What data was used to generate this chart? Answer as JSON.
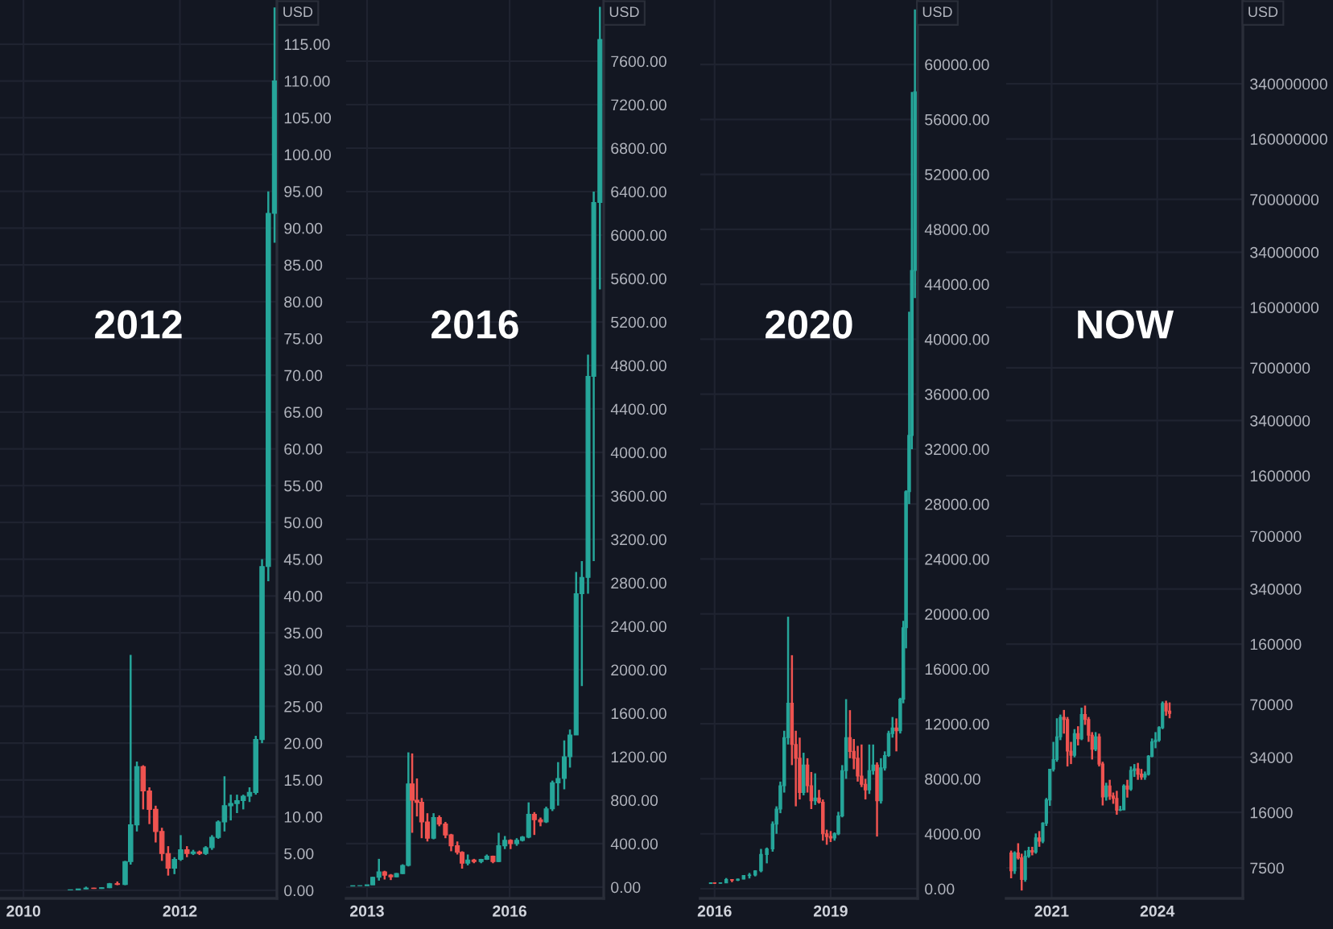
{
  "chart_data": [
    {
      "type": "candlestick",
      "ylabel": "USD",
      "annotations": [
        "2012"
      ],
      "grid": true,
      "xlim": [
        2009.7,
        2013.24
      ],
      "xticks": [
        2010,
        2012
      ],
      "ylim": [
        -1.1,
        121
      ],
      "yticks": [
        {
          "value": 0,
          "label": "0.00"
        },
        {
          "value": 5,
          "label": "5.00"
        },
        {
          "value": 10,
          "label": "10.00"
        },
        {
          "value": 15,
          "label": "15.00"
        },
        {
          "value": 20,
          "label": "20.00"
        },
        {
          "value": 25,
          "label": "25.00"
        },
        {
          "value": 30,
          "label": "30.00"
        },
        {
          "value": 35,
          "label": "35.00"
        },
        {
          "value": 40,
          "label": "40.00"
        },
        {
          "value": 45,
          "label": "45.00"
        },
        {
          "value": 50,
          "label": "50.00"
        },
        {
          "value": 55,
          "label": "55.00"
        },
        {
          "value": 60,
          "label": "60.00"
        },
        {
          "value": 65,
          "label": "65.00"
        },
        {
          "value": 70,
          "label": "70.00"
        },
        {
          "value": 75,
          "label": "75.00"
        },
        {
          "value": 80,
          "label": "80.00"
        },
        {
          "value": 85,
          "label": "85.00"
        },
        {
          "value": 90,
          "label": "90.00"
        },
        {
          "value": 95,
          "label": "95.00"
        },
        {
          "value": 100,
          "label": "100.00"
        },
        {
          "value": 105,
          "label": "105.00"
        },
        {
          "value": 110,
          "label": "110.00"
        },
        {
          "value": 115,
          "label": "115.00"
        }
      ],
      "x": [
        2010.6,
        2010.7,
        2010.8,
        2010.9,
        2011.0,
        2011.1,
        2011.2,
        2011.3,
        2011.37,
        2011.45,
        2011.53,
        2011.61,
        2011.69,
        2011.77,
        2011.85,
        2011.93,
        2012.01,
        2012.09,
        2012.17,
        2012.25,
        2012.33,
        2012.41,
        2012.49,
        2012.57,
        2012.65,
        2012.73,
        2012.81,
        2012.89,
        2012.97,
        2013.05,
        2013.13,
        2013.21
      ],
      "ohlc": [
        [
          0.06,
          0.1,
          0.05,
          0.07
        ],
        [
          0.07,
          0.2,
          0.06,
          0.19
        ],
        [
          0.19,
          0.5,
          0.15,
          0.3
        ],
        [
          0.3,
          0.35,
          0.2,
          0.25
        ],
        [
          0.25,
          0.4,
          0.2,
          0.35
        ],
        [
          0.35,
          1.0,
          0.3,
          0.9
        ],
        [
          0.9,
          1.2,
          0.7,
          0.8
        ],
        [
          0.8,
          4.0,
          0.7,
          3.9
        ],
        [
          3.9,
          32,
          3.5,
          8.9
        ],
        [
          8.9,
          17.5,
          8,
          16.8
        ],
        [
          16.8,
          17,
          11,
          13.5
        ],
        [
          13.5,
          14,
          9,
          11
        ],
        [
          11,
          11.5,
          6.5,
          8
        ],
        [
          8,
          8.5,
          4,
          5
        ],
        [
          5,
          6,
          2,
          3
        ],
        [
          3,
          4.5,
          2.2,
          4.2
        ],
        [
          4.2,
          7.5,
          4,
          5.5
        ],
        [
          5.5,
          6,
          4.5,
          5
        ],
        [
          5,
          5.5,
          4.8,
          5.2
        ],
        [
          5.2,
          5.4,
          4.8,
          5.0
        ],
        [
          5,
          6,
          4.8,
          5.8
        ],
        [
          5.8,
          7.5,
          5.5,
          7.2
        ],
        [
          7.2,
          9.5,
          7,
          9.3
        ],
        [
          9.3,
          15.5,
          8,
          11.5
        ],
        [
          11.5,
          13,
          9.5,
          11.8
        ],
        [
          11.8,
          13,
          10.5,
          12.2
        ],
        [
          12.2,
          13,
          11,
          12.8
        ],
        [
          12.8,
          14,
          12,
          13.3
        ],
        [
          13.3,
          21,
          13,
          20.5
        ],
        [
          20.5,
          45,
          20,
          44
        ],
        [
          44,
          95,
          42,
          92
        ],
        [
          92,
          120,
          88,
          110
        ]
      ]
    },
    {
      "type": "candlestick",
      "ylabel": "USD",
      "annotations": [
        "2016"
      ],
      "grid": true,
      "xlim": [
        2012.56,
        2017.98
      ],
      "xticks": [
        2013,
        2016
      ],
      "ylim": [
        -104,
        8163
      ],
      "yticks": [
        {
          "value": 0,
          "label": "0.00"
        },
        {
          "value": 400,
          "label": "400.00"
        },
        {
          "value": 800,
          "label": "800.00"
        },
        {
          "value": 1200,
          "label": "1200.00"
        },
        {
          "value": 1600,
          "label": "1600.00"
        },
        {
          "value": 2000,
          "label": "2000.00"
        },
        {
          "value": 2400,
          "label": "2400.00"
        },
        {
          "value": 2800,
          "label": "2800.00"
        },
        {
          "value": 3200,
          "label": "3200.00"
        },
        {
          "value": 3600,
          "label": "3600.00"
        },
        {
          "value": 4000,
          "label": "4000.00"
        },
        {
          "value": 4400,
          "label": "4400.00"
        },
        {
          "value": 4800,
          "label": "4800.00"
        },
        {
          "value": 5200,
          "label": "5200.00"
        },
        {
          "value": 5600,
          "label": "5600.00"
        },
        {
          "value": 6000,
          "label": "6000.00"
        },
        {
          "value": 6400,
          "label": "6400.00"
        },
        {
          "value": 6800,
          "label": "6800.00"
        },
        {
          "value": 7200,
          "label": "7200.00"
        },
        {
          "value": 7600,
          "label": "7600.00"
        }
      ],
      "x": [
        2012.7,
        2012.85,
        2013.0,
        2013.12,
        2013.25,
        2013.37,
        2013.5,
        2013.62,
        2013.75,
        2013.87,
        2013.95,
        2014.05,
        2014.15,
        2014.27,
        2014.4,
        2014.52,
        2014.65,
        2014.77,
        2014.9,
        2015.0,
        2015.12,
        2015.25,
        2015.4,
        2015.52,
        2015.65,
        2015.77,
        2015.9,
        2016.02,
        2016.15,
        2016.27,
        2016.4,
        2016.52,
        2016.65,
        2016.77,
        2016.9,
        2017.02,
        2017.15,
        2017.27,
        2017.4,
        2017.52,
        2017.65,
        2017.77,
        2017.9
      ],
      "ohlc": [
        [
          10,
          14,
          9,
          13
        ],
        [
          13,
          14,
          12,
          13.5
        ],
        [
          13.5,
          22,
          13,
          21
        ],
        [
          21,
          95,
          20,
          90
        ],
        [
          90,
          260,
          60,
          140
        ],
        [
          140,
          150,
          70,
          110
        ],
        [
          110,
          120,
          65,
          95
        ],
        [
          95,
          130,
          90,
          125
        ],
        [
          125,
          210,
          120,
          200
        ],
        [
          200,
          1240,
          190,
          950
        ],
        [
          950,
          1230,
          500,
          800
        ],
        [
          800,
          1000,
          650,
          780
        ],
        [
          780,
          820,
          450,
          600
        ],
        [
          600,
          680,
          420,
          450
        ],
        [
          450,
          680,
          440,
          640
        ],
        [
          640,
          660,
          560,
          580
        ],
        [
          580,
          600,
          450,
          480
        ],
        [
          480,
          490,
          330,
          380
        ],
        [
          380,
          420,
          300,
          320
        ],
        [
          320,
          330,
          170,
          220
        ],
        [
          220,
          300,
          200,
          250
        ],
        [
          250,
          260,
          220,
          235
        ],
        [
          235,
          260,
          220,
          255
        ],
        [
          255,
          300,
          250,
          285
        ],
        [
          285,
          290,
          220,
          235
        ],
        [
          235,
          500,
          230,
          380
        ],
        [
          380,
          470,
          350,
          430
        ],
        [
          430,
          440,
          350,
          400
        ],
        [
          400,
          450,
          380,
          430
        ],
        [
          430,
          470,
          420,
          460
        ],
        [
          460,
          780,
          450,
          670
        ],
        [
          670,
          690,
          480,
          620
        ],
        [
          620,
          640,
          560,
          600
        ],
        [
          600,
          740,
          590,
          720
        ],
        [
          720,
          980,
          700,
          960
        ],
        [
          960,
          1150,
          750,
          1000
        ],
        [
          1000,
          1350,
          900,
          1200
        ],
        [
          1200,
          1450,
          1100,
          1400
        ],
        [
          1400,
          2900,
          1400,
          2700
        ],
        [
          2700,
          3000,
          1850,
          2850
        ],
        [
          2850,
          4900,
          2700,
          4700
        ],
        [
          4700,
          6400,
          3000,
          6300
        ],
        [
          6300,
          8100,
          5500,
          7800
        ]
      ]
    },
    {
      "type": "candlestick",
      "ylabel": "USD",
      "annotations": [
        "2020"
      ],
      "grid": true,
      "xlim": [
        2015.63,
        2021.25
      ],
      "xticks": [
        2016,
        2019
      ],
      "ylim": [
        -703,
        64690
      ],
      "yticks": [
        {
          "value": 0,
          "label": "0.00"
        },
        {
          "value": 4000,
          "label": "4000.00"
        },
        {
          "value": 8000,
          "label": "8000.00"
        },
        {
          "value": 12000,
          "label": "12000.00"
        },
        {
          "value": 16000,
          "label": "16000.00"
        },
        {
          "value": 20000,
          "label": "20000.00"
        },
        {
          "value": 24000,
          "label": "24000.00"
        },
        {
          "value": 28000,
          "label": "28000.00"
        },
        {
          "value": 32000,
          "label": "32000.00"
        },
        {
          "value": 36000,
          "label": "36000.00"
        },
        {
          "value": 40000,
          "label": "40000.00"
        },
        {
          "value": 44000,
          "label": "44000.00"
        },
        {
          "value": 48000,
          "label": "48000.00"
        },
        {
          "value": 52000,
          "label": "52000.00"
        },
        {
          "value": 56000,
          "label": "56000.00"
        },
        {
          "value": 60000,
          "label": "60000.00"
        }
      ],
      "x": [
        2015.9,
        2016.0,
        2016.15,
        2016.3,
        2016.45,
        2016.6,
        2016.75,
        2016.9,
        2017.05,
        2017.2,
        2017.35,
        2017.5,
        2017.6,
        2017.7,
        2017.8,
        2017.9,
        2018.0,
        2018.1,
        2018.2,
        2018.3,
        2018.4,
        2018.5,
        2018.6,
        2018.7,
        2018.8,
        2018.9,
        2019.0,
        2019.1,
        2019.2,
        2019.3,
        2019.4,
        2019.5,
        2019.6,
        2019.7,
        2019.8,
        2019.9,
        2020.0,
        2020.1,
        2020.2,
        2020.3,
        2020.4,
        2020.5,
        2020.6,
        2020.7,
        2020.8,
        2020.88,
        2020.95,
        2021.03,
        2021.1,
        2021.18
      ],
      "ohlc": [
        [
          380,
          470,
          350,
          430
        ],
        [
          430,
          440,
          350,
          400
        ],
        [
          400,
          460,
          380,
          430
        ],
        [
          430,
          780,
          420,
          670
        ],
        [
          670,
          690,
          480,
          620
        ],
        [
          620,
          740,
          560,
          700
        ],
        [
          700,
          980,
          690,
          960
        ],
        [
          960,
          1150,
          750,
          1000
        ],
        [
          1000,
          1350,
          900,
          1300
        ],
        [
          1300,
          2900,
          1200,
          2500
        ],
        [
          2500,
          3000,
          1850,
          2900
        ],
        [
          2900,
          4900,
          2700,
          4700
        ],
        [
          4700,
          6000,
          4000,
          5800
        ],
        [
          5800,
          7800,
          5500,
          7500
        ],
        [
          7500,
          11500,
          7000,
          11000
        ],
        [
          11000,
          19800,
          10500,
          13500
        ],
        [
          13500,
          17000,
          9000,
          10500
        ],
        [
          10500,
          11500,
          6000,
          9500
        ],
        [
          9500,
          11000,
          6500,
          7000
        ],
        [
          7000,
          9900,
          6800,
          9000
        ],
        [
          9000,
          9500,
          7000,
          7500
        ],
        [
          7500,
          8500,
          5800,
          6400
        ],
        [
          6400,
          8400,
          6100,
          6600
        ],
        [
          6600,
          7200,
          6200,
          6300
        ],
        [
          6300,
          6500,
          3500,
          4000
        ],
        [
          4000,
          4300,
          3200,
          3800
        ],
        [
          3800,
          4200,
          3400,
          3700
        ],
        [
          3700,
          4100,
          3500,
          4000
        ],
        [
          4000,
          5600,
          3900,
          5300
        ],
        [
          5300,
          9000,
          5200,
          8600
        ],
        [
          8600,
          13800,
          8000,
          11000
        ],
        [
          11000,
          13000,
          9500,
          10000
        ],
        [
          10000,
          10900,
          8700,
          9500
        ],
        [
          9500,
          10400,
          7800,
          8200
        ],
        [
          8200,
          10500,
          7400,
          7600
        ],
        [
          7600,
          8000,
          6500,
          7200
        ],
        [
          7200,
          10500,
          6900,
          8600
        ],
        [
          8600,
          10500,
          8300,
          9000
        ],
        [
          9000,
          9200,
          3800,
          6400
        ],
        [
          6400,
          9500,
          6200,
          8800
        ],
        [
          8800,
          10000,
          8600,
          9700
        ],
        [
          9700,
          11500,
          9600,
          11300
        ],
        [
          11300,
          12500,
          11000,
          11700
        ],
        [
          11700,
          12400,
          10000,
          11500
        ],
        [
          11500,
          13900,
          11300,
          13800
        ],
        [
          13800,
          19500,
          13500,
          19000
        ],
        [
          19000,
          29000,
          17500,
          28900
        ],
        [
          28900,
          42000,
          28000,
          33000
        ],
        [
          33000,
          58000,
          32000,
          45000
        ],
        [
          45000,
          64000,
          43000,
          58000
        ]
      ]
    },
    {
      "type": "candlestick",
      "ylabel": "USD",
      "annotations": [
        "NOW"
      ],
      "grid": true,
      "log": true,
      "xlim": [
        2019.71,
        2026.43
      ],
      "xticks": [
        2021,
        2024
      ],
      "ylim": [
        4937,
        1070000000
      ],
      "yticks": [
        7500,
        16000,
        34000,
        70000,
        160000,
        340000,
        700000,
        1600000,
        3400000,
        7000000,
        16000000,
        34000000,
        70000000,
        160000000,
        340000000
      ],
      "x": [
        2019.85,
        2019.95,
        2020.05,
        2020.15,
        2020.25,
        2020.35,
        2020.45,
        2020.55,
        2020.65,
        2020.75,
        2020.85,
        2020.95,
        2021.05,
        2021.15,
        2021.25,
        2021.35,
        2021.45,
        2021.55,
        2021.65,
        2021.75,
        2021.85,
        2021.95,
        2022.05,
        2022.15,
        2022.25,
        2022.35,
        2022.45,
        2022.55,
        2022.65,
        2022.75,
        2022.85,
        2022.95,
        2023.05,
        2023.15,
        2023.25,
        2023.35,
        2023.45,
        2023.55,
        2023.65,
        2023.75,
        2023.85,
        2023.95,
        2024.05,
        2024.15,
        2024.25,
        2024.35
      ],
      "ohlc": [
        [
          9200,
          9500,
          6500,
          7200
        ],
        [
          7200,
          9400,
          6900,
          9200
        ],
        [
          9200,
          10500,
          8400,
          8600
        ],
        [
          8600,
          9100,
          5500,
          6400
        ],
        [
          6400,
          9500,
          6200,
          8800
        ],
        [
          8800,
          10000,
          8600,
          9500
        ],
        [
          9500,
          10000,
          8900,
          9300
        ],
        [
          9300,
          12000,
          9100,
          11300
        ],
        [
          11300,
          12400,
          10000,
          10800
        ],
        [
          10800,
          14000,
          10500,
          13800
        ],
        [
          13800,
          19500,
          13300,
          19000
        ],
        [
          19000,
          29000,
          17500,
          28900
        ],
        [
          28900,
          42000,
          28000,
          33000
        ],
        [
          33000,
          58000,
          32000,
          45000
        ],
        [
          45000,
          61000,
          43000,
          58800
        ],
        [
          58800,
          65000,
          47000,
          57000
        ],
        [
          57000,
          59000,
          30000,
          37000
        ],
        [
          37000,
          42000,
          31000,
          35000
        ],
        [
          35000,
          50000,
          34000,
          47000
        ],
        [
          47000,
          52000,
          40000,
          43800
        ],
        [
          43800,
          67000,
          43000,
          61000
        ],
        [
          61000,
          69000,
          53000,
          57000
        ],
        [
          57000,
          59000,
          42000,
          46000
        ],
        [
          46000,
          48000,
          33000,
          38000
        ],
        [
          38000,
          48000,
          37000,
          45000
        ],
        [
          45000,
          47000,
          30000,
          31000
        ],
        [
          31000,
          32000,
          17600,
          19800
        ],
        [
          19800,
          24000,
          18800,
          23000
        ],
        [
          23000,
          25000,
          19000,
          20000
        ],
        [
          20000,
          21000,
          18000,
          19400
        ],
        [
          19400,
          21500,
          15500,
          16500
        ],
        [
          16500,
          17500,
          16300,
          16600
        ],
        [
          16600,
          23500,
          16500,
          23000
        ],
        [
          23000,
          25000,
          19600,
          22000
        ],
        [
          22000,
          30000,
          21500,
          28400
        ],
        [
          28400,
          31000,
          26000,
          29000
        ],
        [
          29000,
          31500,
          25000,
          27000
        ],
        [
          27000,
          29000,
          25000,
          26000
        ],
        [
          26000,
          28000,
          25000,
          27000
        ],
        [
          27000,
          35000,
          26500,
          34500
        ],
        [
          34500,
          44000,
          34000,
          42000
        ],
        [
          42000,
          48000,
          38500,
          43000
        ],
        [
          43000,
          52000,
          42000,
          51000
        ],
        [
          51000,
          73000,
          50000,
          71000
        ],
        [
          71000,
          73700,
          60000,
          64000
        ],
        [
          64000,
          72000,
          58000,
          62000
        ]
      ]
    }
  ]
}
